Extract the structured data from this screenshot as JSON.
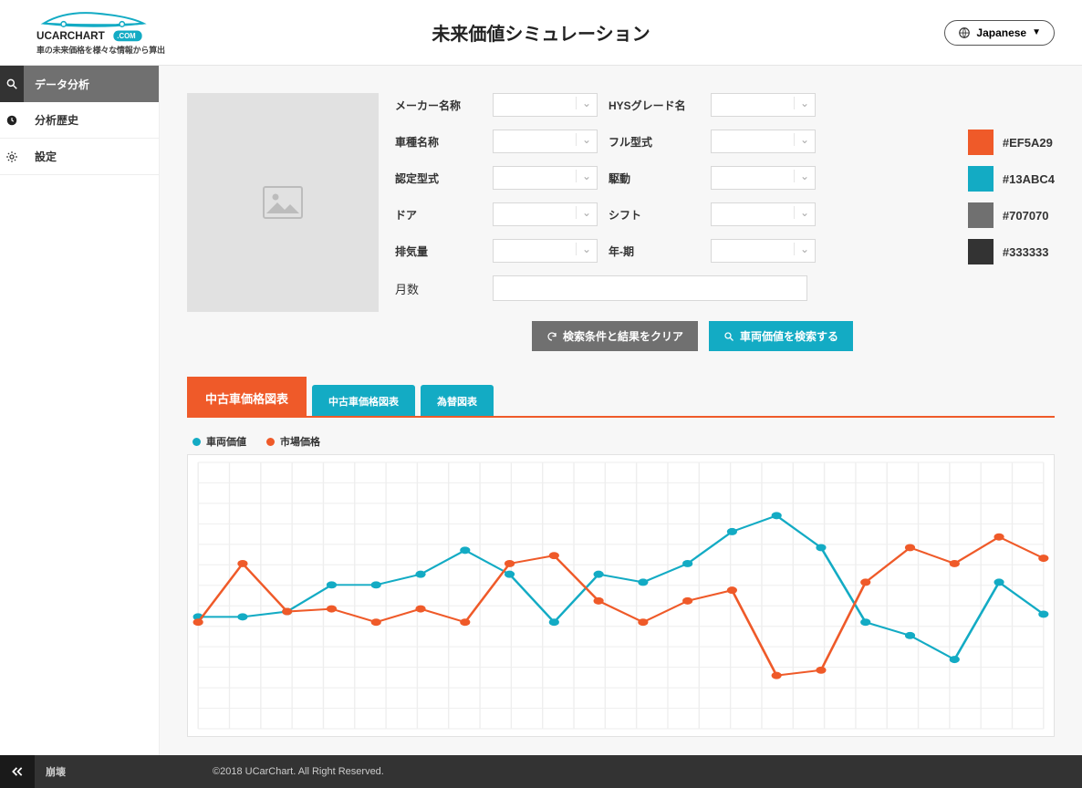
{
  "brand": {
    "name": "UCARCHART",
    "dotcom": ".COM",
    "tagline": "車の未来価格を様々な情報から算出"
  },
  "pageTitle": "未来価値シミュレーション",
  "lang": {
    "label": "Japanese"
  },
  "sidebar": {
    "items": [
      {
        "label": "データ分析",
        "icon": "search"
      },
      {
        "label": "分析歴史",
        "icon": "clock"
      },
      {
        "label": "設定",
        "icon": "gear"
      }
    ]
  },
  "form": {
    "labels": {
      "maker": "メーカー名称",
      "hysGrade": "HYSグレード名",
      "carName": "車種名称",
      "fullModel": "フル型式",
      "certModel": "認定型式",
      "drive": "駆動",
      "door": "ドア",
      "shift": "シフト",
      "displacement": "排気量",
      "yearPeriod": "年-期",
      "month": "月数"
    }
  },
  "buttons": {
    "clear": "検索条件と結果をクリア",
    "search": "車両価値を検索する"
  },
  "palette": {
    "colors": [
      {
        "hex": "#EF5A29"
      },
      {
        "hex": "#13ABC4"
      },
      {
        "hex": "#707070"
      },
      {
        "hex": "#333333"
      }
    ]
  },
  "tabs": {
    "items": [
      {
        "label": "中古車価格図表",
        "active": true
      },
      {
        "label": "中古車価格図表",
        "active": false
      },
      {
        "label": "為替図表",
        "active": false
      }
    ]
  },
  "legend": {
    "items": [
      {
        "label": "車両価値",
        "color": "#13ABC4"
      },
      {
        "label": "市場価格",
        "color": "#EF5A29"
      }
    ]
  },
  "chart": {
    "grid": {
      "color": "#eeeeee",
      "cols": 27,
      "rows": 13
    },
    "border": "#e2e2e2",
    "line_width": 2,
    "marker_radius": 4,
    "yRange": [
      0,
      100
    ],
    "series": [
      {
        "name": "車両価値",
        "color": "#13ABC4",
        "x": [
          0,
          1,
          2,
          3,
          4,
          5,
          6,
          7,
          8,
          9,
          10,
          11,
          12,
          13,
          14,
          15,
          16,
          17,
          18,
          19
        ],
        "y": [
          42,
          42,
          44,
          54,
          54,
          58,
          67,
          58,
          40,
          58,
          55,
          62,
          74,
          80,
          68,
          40,
          35,
          26,
          55,
          43
        ]
      },
      {
        "name": "市場価格",
        "color": "#EF5A29",
        "x": [
          0,
          1,
          2,
          3,
          4,
          5,
          6,
          7,
          8,
          9,
          10,
          11,
          12,
          13,
          14,
          15,
          16,
          17,
          18,
          19
        ],
        "y": [
          40,
          62,
          44,
          45,
          40,
          45,
          40,
          62,
          65,
          48,
          40,
          48,
          52,
          20,
          22,
          55,
          68,
          62,
          72,
          64
        ]
      }
    ]
  },
  "footer": {
    "collapse": "崩壊",
    "copyright": "©2018 UCarChart. All Right Reserved."
  }
}
